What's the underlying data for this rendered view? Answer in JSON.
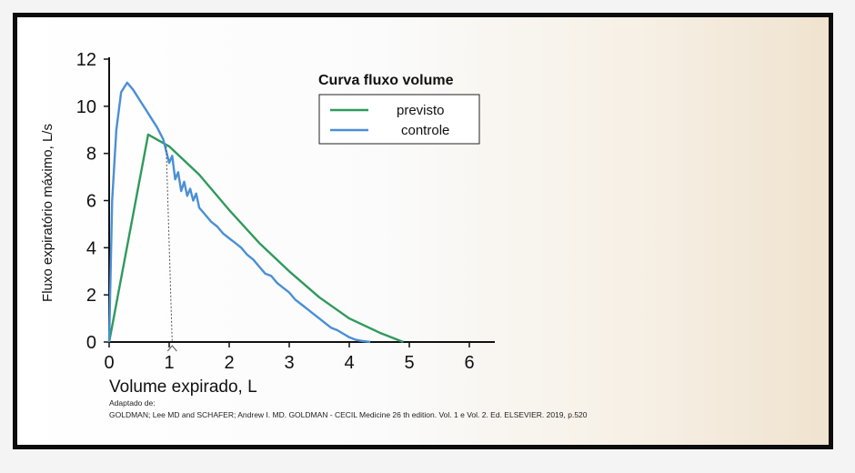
{
  "chart_data": {
    "type": "line",
    "xlabel": "Volume expirado, L",
    "ylabel": "Fluxo expiratório máximo, L/s",
    "xlim": [
      0,
      6
    ],
    "ylim": [
      0,
      12
    ],
    "x_ticks": [
      0,
      1,
      2,
      3,
      4,
      5,
      6
    ],
    "y_ticks": [
      0,
      2,
      4,
      6,
      8,
      10,
      12
    ],
    "legend_title": "Curva fluxo volume",
    "legend_position": "top-right",
    "grid": false,
    "series": [
      {
        "name": "previsto",
        "color": "#2f9a5c",
        "x": [
          0,
          0.65,
          1.0,
          1.5,
          2.0,
          2.5,
          3.0,
          3.5,
          4.0,
          4.5,
          4.9
        ],
        "y": [
          0,
          8.8,
          8.3,
          7.1,
          5.6,
          4.2,
          3.0,
          1.9,
          1.0,
          0.4,
          0
        ]
      },
      {
        "name": "controle",
        "color": "#4a8fd6",
        "x": [
          0,
          0.05,
          0.12,
          0.2,
          0.3,
          0.4,
          0.5,
          0.6,
          0.7,
          0.8,
          0.9,
          1.0,
          1.05,
          1.1,
          1.15,
          1.2,
          1.25,
          1.3,
          1.35,
          1.4,
          1.45,
          1.5,
          1.6,
          1.7,
          1.8,
          1.9,
          2.0,
          2.1,
          2.2,
          2.3,
          2.4,
          2.5,
          2.6,
          2.7,
          2.8,
          2.9,
          3.0,
          3.1,
          3.2,
          3.3,
          3.4,
          3.5,
          3.6,
          3.7,
          3.8,
          3.9,
          4.0,
          4.1,
          4.2,
          4.35
        ],
        "y": [
          0,
          6.0,
          9.0,
          10.6,
          11.0,
          10.7,
          10.3,
          9.9,
          9.5,
          9.1,
          8.6,
          7.6,
          7.9,
          6.9,
          7.2,
          6.4,
          6.8,
          6.2,
          6.5,
          6.0,
          6.3,
          5.7,
          5.4,
          5.1,
          4.9,
          4.6,
          4.4,
          4.2,
          4.0,
          3.7,
          3.5,
          3.2,
          2.9,
          2.8,
          2.5,
          2.3,
          2.1,
          1.8,
          1.6,
          1.4,
          1.2,
          1.0,
          0.8,
          0.6,
          0.5,
          0.35,
          0.2,
          0.1,
          0.05,
          0
        ]
      }
    ],
    "annotations": [
      {
        "type": "dotted-drop-line",
        "from": [
          0.95,
          8.3
        ],
        "to": [
          1.05,
          0
        ]
      }
    ]
  },
  "source": {
    "adapted_label": "Adaptado de:",
    "citation": "GOLDMAN; Lee MD and SCHAFER; Andrew I. MD. GOLDMAN - CECIL Medicine 26 th edition. Vol. 1 e Vol. 2. Ed. ELSEVIER. 2019, p.520"
  }
}
